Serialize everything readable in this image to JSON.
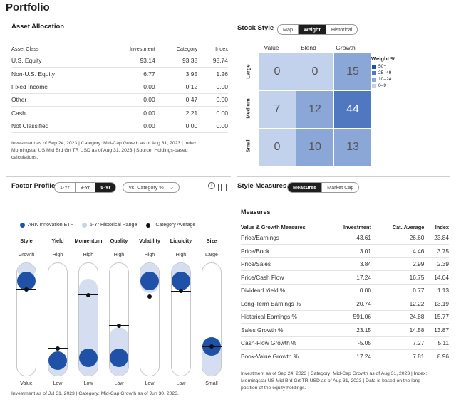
{
  "page_title": "Portfolio",
  "asset_allocation": {
    "title": "Asset Allocation",
    "headers": [
      "Asset Class",
      "Investment",
      "Category",
      "Index"
    ],
    "rows": [
      [
        "U.S. Equity",
        "93.14",
        "93.38",
        "98.74"
      ],
      [
        "Non-U.S. Equity",
        "6.77",
        "3.95",
        "1.26"
      ],
      [
        "Fixed Income",
        "0.09",
        "0.12",
        "0.00"
      ],
      [
        "Other",
        "0.00",
        "0.47",
        "0.00"
      ],
      [
        "Cash",
        "0.00",
        "2.21",
        "0.00"
      ],
      [
        "Not Classified",
        "0.00",
        "0.00",
        "0.00"
      ]
    ],
    "footnote_1": "Investment as of Sep 24, 2023 | Category: Mid-Cap Growth as of Aug 31, 2023 | Index:",
    "footnote_2": "Morningstar US Mid Brd Grt TR USD as of Aug 31, 2023 | Source: Holdings-based",
    "footnote_3": "calculations."
  },
  "stock_style": {
    "title": "Stock Style",
    "toggle": [
      "Map",
      "Weight",
      "Historical"
    ],
    "selected": "Weight",
    "columns": [
      "Value",
      "Blend",
      "Growth"
    ],
    "rows": [
      "Large",
      "Medium",
      "Small"
    ],
    "grid": [
      [
        "0",
        "0",
        "15"
      ],
      [
        "7",
        "12",
        "44"
      ],
      [
        "0",
        "10",
        "13"
      ]
    ],
    "legend_title": "Weight %",
    "legend": [
      {
        "label": "50+",
        "color": "#1f51a8"
      },
      {
        "label": "25–49",
        "color": "#4f78c0"
      },
      {
        "label": "10–24",
        "color": "#8aa7d8"
      },
      {
        "label": "0–9",
        "color": "#c3d2ec"
      }
    ]
  },
  "factor_profile": {
    "title": "Factor Profile",
    "toggle": [
      "1-Yr",
      "3-Yr",
      "5-Yr"
    ],
    "selected": "5-Yr",
    "compare": "vs. Category %",
    "legend": [
      "ARK Innovation ETF",
      "5-Yr Historical Range",
      "Category Average"
    ],
    "factors": [
      {
        "name": "Style",
        "top": "Growth",
        "bottom": "Value",
        "fund": 0.9,
        "avg": 0.82,
        "range": [
          0.88,
          1.0
        ]
      },
      {
        "name": "Yield",
        "top": "High",
        "bottom": "Low",
        "fund": 0.07,
        "avg": 0.2,
        "range": [
          0.0,
          0.2
        ]
      },
      {
        "name": "Momentum",
        "top": "High",
        "bottom": "Low",
        "fund": 0.1,
        "avg": 0.76,
        "range": [
          0.0,
          0.86
        ]
      },
      {
        "name": "Quality",
        "top": "High",
        "bottom": "Low",
        "fund": 0.1,
        "avg": 0.44,
        "range": [
          0.0,
          0.44
        ]
      },
      {
        "name": "Volatility",
        "top": "High",
        "bottom": "Low",
        "fund": 0.9,
        "avg": 0.74,
        "range": [
          0.74,
          1.0
        ]
      },
      {
        "name": "Liquidity",
        "top": "High",
        "bottom": "Low",
        "fund": 0.9,
        "avg": 0.8,
        "range": [
          0.8,
          1.0
        ]
      },
      {
        "name": "Size",
        "top": "Large",
        "bottom": "Small",
        "fund": 0.22,
        "avg": 0.22,
        "range": [
          0.0,
          0.35
        ]
      }
    ],
    "footnote": "Investment as of Jul 31, 2023 | Category: Mid-Cap Growth as of Jun 30, 2023."
  },
  "style_measures": {
    "title": "Style Measures",
    "toggle": [
      "Measures",
      "Market Cap"
    ],
    "selected": "Measures",
    "subtitle": "Measures",
    "headers": [
      "Value & Growth Measures",
      "Investment",
      "Cat. Average",
      "Index"
    ],
    "rows": [
      [
        "Price/Earnings",
        "43.61",
        "26.60",
        "23.84"
      ],
      [
        "Price/Book",
        "3.01",
        "4.46",
        "3.75"
      ],
      [
        "Price/Sales",
        "3.84",
        "2.99",
        "2.39"
      ],
      [
        "Price/Cash Flow",
        "17.24",
        "16.75",
        "14.04"
      ],
      [
        "Dividend Yield %",
        "0.00",
        "0.77",
        "1.13"
      ],
      [
        "Long-Term Earnings %",
        "20.74",
        "12.22",
        "13.19"
      ],
      [
        "Historical Earnings %",
        "591.06",
        "24.88",
        "15.77"
      ],
      [
        "Sales Growth %",
        "23.15",
        "14.58",
        "13.87"
      ],
      [
        "Cash-Flow Growth %",
        "-5.05",
        "7.27",
        "5.11"
      ],
      [
        "Book-Value Growth %",
        "17.24",
        "7.81",
        "8.96"
      ]
    ],
    "footnote_1": "Investment as of Sep 24, 2023 | Category: Mid-Cap Growth as of Aug 31, 2023 | Index:",
    "footnote_2": "Morningstar US Mid Brd Grt TR USD as of Aug 31, 2023 | Data is based on the long",
    "footnote_3": "position of the equity holdings."
  }
}
